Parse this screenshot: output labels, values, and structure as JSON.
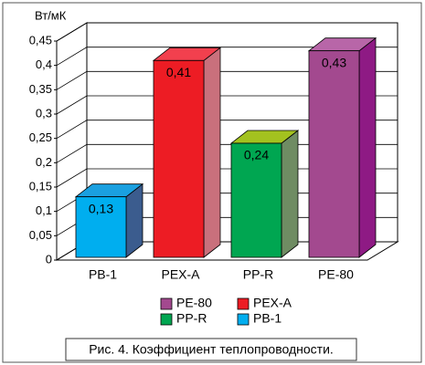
{
  "chart_data": {
    "type": "bar3d",
    "y_unit": "Вт/мК",
    "caption": "Рис. 4. Коэффициент теплопроводности.",
    "categories": [
      "PB-1",
      "PEX-A",
      "PP-R",
      "PE-80"
    ],
    "values": [
      0.13,
      0.41,
      0.24,
      0.43
    ],
    "value_labels": [
      "0,13",
      "0,41",
      "0,24",
      "0,43"
    ],
    "colors": [
      "#00aeef",
      "#ed1c24",
      "#00a651",
      "#a3498f"
    ],
    "side_colors": [
      "#3b5c8e",
      "#c9707c",
      "#6f8c63",
      "#8e1a84"
    ],
    "top_colors": [
      "#1aa0e0",
      "#f2404e",
      "#a3c21f",
      "#b866a8"
    ],
    "ylim": [
      0,
      0.45
    ],
    "yticks": [
      0,
      {
        "value": 0.05,
        "label": "0,05"
      },
      {
        "value": 0.1,
        "label": "0,1"
      },
      {
        "value": 0.15,
        "label": "0,15"
      },
      {
        "value": 0.2,
        "label": "0,2"
      },
      {
        "value": 0.25,
        "label": "0,25"
      },
      {
        "value": 0.3,
        "label": "0,3"
      },
      {
        "value": 0.35,
        "label": "0,35"
      },
      {
        "value": 0.4,
        "label": "0,4"
      },
      {
        "value": 0.45,
        "label": "0,45"
      }
    ],
    "grid": true
  }
}
